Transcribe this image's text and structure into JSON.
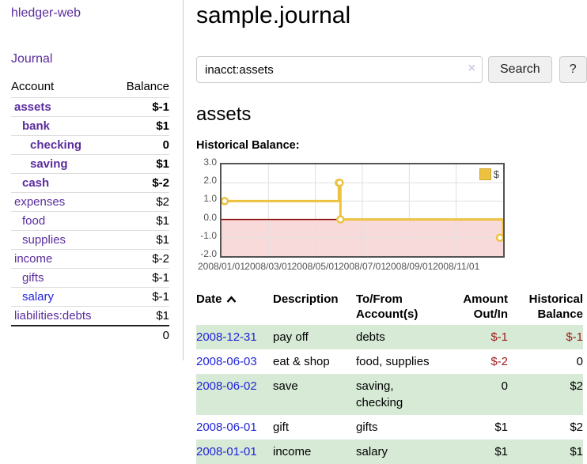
{
  "colors": {
    "link_purple": "#5b2d9e",
    "link_blue": "#2325d9",
    "negative_strong": "#9c1b1b",
    "negative_muted": "#bd8282",
    "row_stripe_green": "#d6ead6",
    "series_yellow": "#edc240",
    "zero_line": "#8b0000",
    "negative_region": "#f9dada",
    "plot_border": "#545454",
    "grid_line": "#e0e0e0"
  },
  "sidebar": {
    "brand": "hledger-web",
    "journal_link": "Journal",
    "accounts": {
      "header_account": "Account",
      "header_balance": "Balance",
      "rows": [
        {
          "name": "assets",
          "indent": 0,
          "bold": true,
          "balance": "$-1",
          "balance_color": "negative",
          "link_style": "purple"
        },
        {
          "name": "bank",
          "indent": 1,
          "bold": true,
          "balance": "$1",
          "balance_color": "normal",
          "link_style": "purple"
        },
        {
          "name": "checking",
          "indent": 2,
          "bold": true,
          "balance": "0",
          "balance_color": "normal",
          "link_style": "purple"
        },
        {
          "name": "saving",
          "indent": 2,
          "bold": true,
          "balance": "$1",
          "balance_color": "normal",
          "link_style": "purple"
        },
        {
          "name": "cash",
          "indent": 1,
          "bold": true,
          "balance": "$-2",
          "balance_color": "negative",
          "link_style": "purple"
        },
        {
          "name": "expenses",
          "indent": 0,
          "bold": false,
          "balance": "$2",
          "balance_color": "normal",
          "link_style": "purple"
        },
        {
          "name": "food",
          "indent": 1,
          "bold": false,
          "balance": "$1",
          "balance_color": "normal",
          "link_style": "purple"
        },
        {
          "name": "supplies",
          "indent": 1,
          "bold": false,
          "balance": "$1",
          "balance_color": "normal",
          "link_style": "purple"
        },
        {
          "name": "income",
          "indent": 0,
          "bold": false,
          "balance": "$-2",
          "balance_color": "negative_muted",
          "link_style": "purple"
        },
        {
          "name": "gifts",
          "indent": 1,
          "bold": false,
          "balance": "$-1",
          "balance_color": "negative_muted",
          "link_style": "purple"
        },
        {
          "name": "salary",
          "indent": 1,
          "bold": false,
          "balance": "$-1",
          "balance_color": "negative_muted",
          "link_style": "blue"
        },
        {
          "name": "liabilities:debts",
          "indent": 0,
          "bold": false,
          "balance": "$1",
          "balance_color": "normal",
          "link_style": "purple"
        }
      ],
      "total": "0"
    }
  },
  "header": {
    "title": "sample.journal"
  },
  "search": {
    "query": "inacct:assets",
    "clear_icon": "×",
    "search_button": "Search",
    "help_button": "?"
  },
  "account_page": {
    "heading": "assets",
    "chart_label": "Historical Balance:"
  },
  "chart_data": {
    "type": "line",
    "title": "Historical Balance:",
    "step": true,
    "series": [
      {
        "name": "$",
        "color": "#edc240",
        "points": [
          [
            "2008-01-01",
            1
          ],
          [
            "2008-06-01",
            2
          ],
          [
            "2008-06-02",
            2
          ],
          [
            "2008-06-03",
            0
          ],
          [
            "2008-12-31",
            -1
          ]
        ]
      }
    ],
    "x_ticks": [
      {
        "label": "2008/01/01",
        "t": 0
      },
      {
        "label": "2008/03/01",
        "t": 2
      },
      {
        "label": "2008/05/01",
        "t": 4
      },
      {
        "label": "2008/07/01",
        "t": 6
      },
      {
        "label": "2008/09/01",
        "t": 8
      },
      {
        "label": "2008/11/01",
        "t": 10
      }
    ],
    "y_ticks": [
      {
        "label": "3.0",
        "value": 3
      },
      {
        "label": "2.0",
        "value": 2
      },
      {
        "label": "1.0",
        "value": 1
      },
      {
        "label": "0.0",
        "value": 0
      },
      {
        "label": "-1.0",
        "value": -1
      },
      {
        "label": "-2.0",
        "value": -2
      }
    ],
    "ylim": [
      -2,
      3
    ],
    "x_range_months": 12,
    "grid": true,
    "legend": {
      "label": "$",
      "position": "top-right"
    },
    "xlabel": "",
    "ylabel": ""
  },
  "transactions": {
    "headers": {
      "date": "Date",
      "description": "Description",
      "tofrom": [
        "To/From",
        "Account(s)"
      ],
      "amount": [
        "Amount",
        "Out/In"
      ],
      "balance": [
        "Historical",
        "Balance"
      ]
    },
    "rows": [
      {
        "date": "2008-12-31",
        "description": "pay off",
        "accounts": "debts",
        "amount": "$-1",
        "amount_negative": true,
        "balance": "$-1",
        "balance_negative": true
      },
      {
        "date": "2008-06-03",
        "description": "eat & shop",
        "accounts": "food, supplies",
        "amount": "$-2",
        "amount_negative": true,
        "balance": "0",
        "balance_negative": false
      },
      {
        "date": "2008-06-02",
        "description": "save",
        "accounts": "saving, checking",
        "amount": "0",
        "amount_negative": false,
        "balance": "$2",
        "balance_negative": false
      },
      {
        "date": "2008-06-01",
        "description": "gift",
        "accounts": "gifts",
        "amount": "$1",
        "amount_negative": false,
        "balance": "$2",
        "balance_negative": false
      },
      {
        "date": "2008-01-01",
        "description": "income",
        "accounts": "salary",
        "amount": "$1",
        "amount_negative": false,
        "balance": "$1",
        "balance_negative": false
      }
    ]
  }
}
